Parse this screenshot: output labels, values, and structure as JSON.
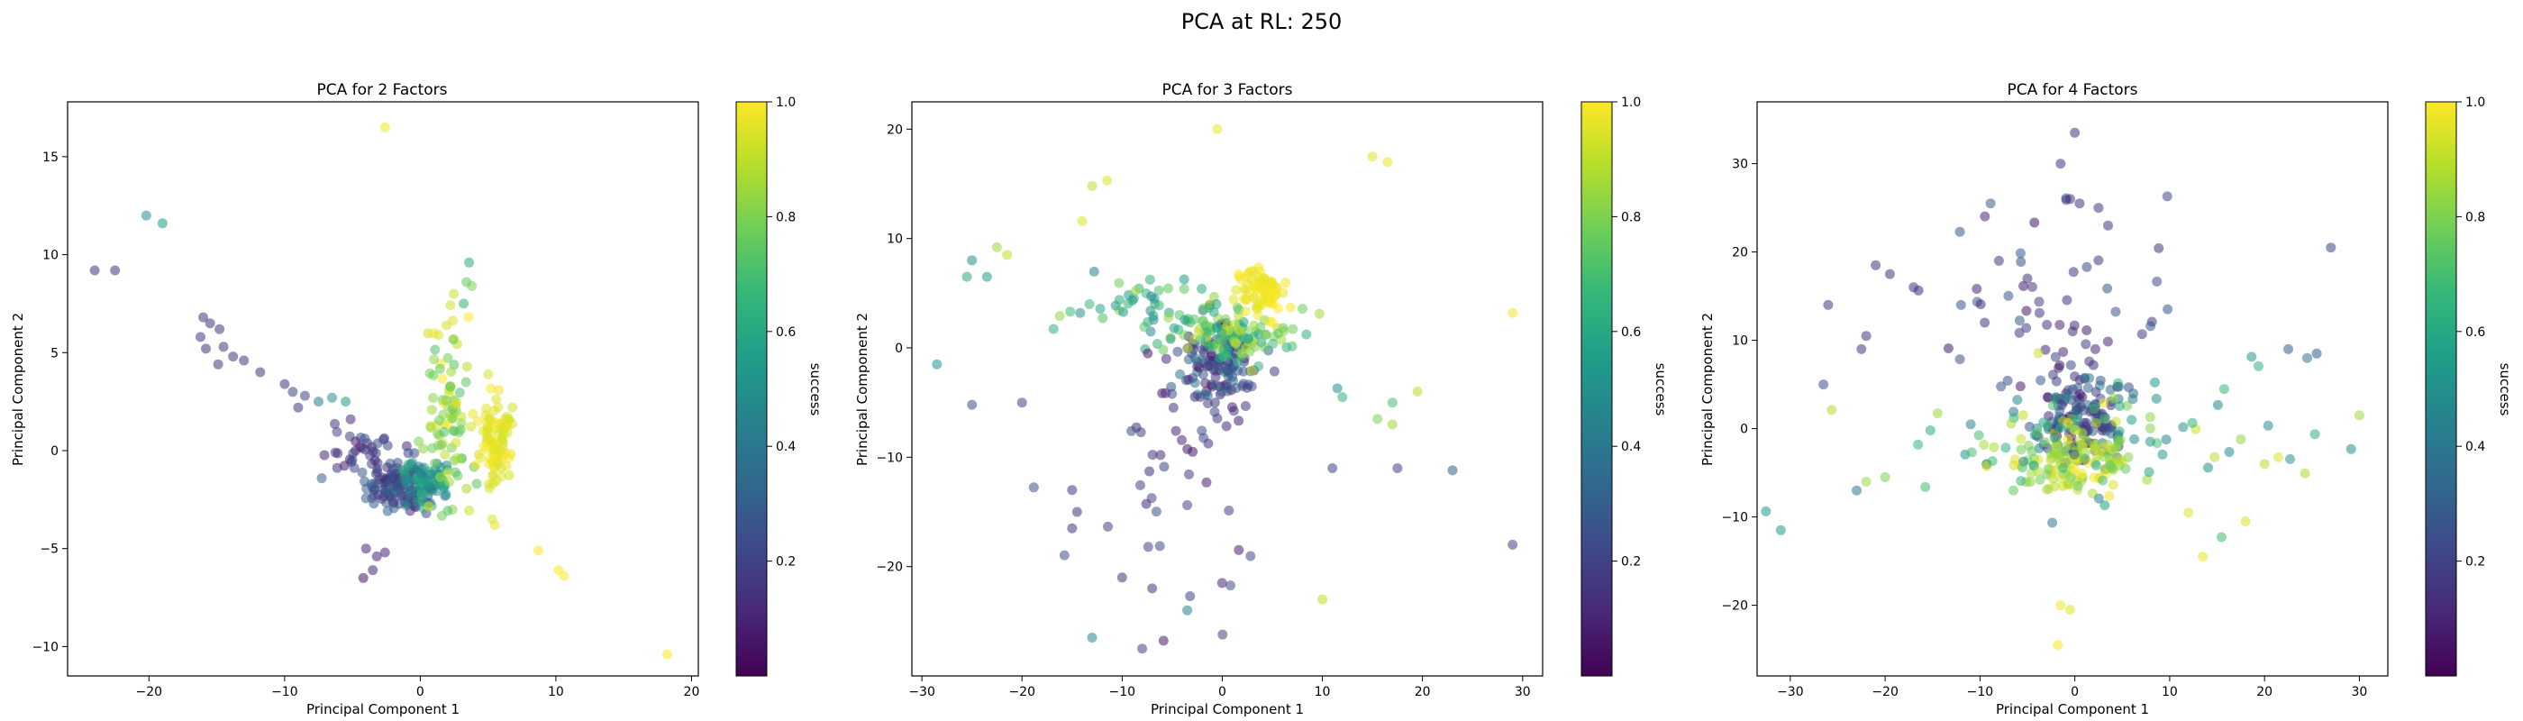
{
  "figure": {
    "suptitle": "PCA at RL: 250"
  },
  "colormap": [
    "#440154",
    "#482878",
    "#3e4989",
    "#31688e",
    "#26828e",
    "#1f9e89",
    "#35b779",
    "#6ece58",
    "#b5de2b",
    "#fde725"
  ],
  "chart_data": [
    {
      "type": "scatter",
      "title": "PCA for 2 Factors",
      "xlabel": "Principal Component 1",
      "ylabel": "Principal Component 2",
      "xlim": [
        -26,
        20.5
      ],
      "ylim": [
        -11.5,
        17.8
      ],
      "xticks": [
        -20,
        -10,
        0,
        10,
        20
      ],
      "yticks": [
        -10,
        -5,
        0,
        5,
        10,
        15
      ],
      "colorbar": {
        "label": "success",
        "range": [
          0,
          1
        ],
        "ticks": [
          0.2,
          0.4,
          0.6,
          0.8,
          1.0
        ]
      },
      "clusters": [
        {
          "cx": -1.5,
          "cy": -1.8,
          "sx": 1.2,
          "sy": 0.7,
          "n": 110,
          "c": [
            0.1,
            0.35
          ]
        },
        {
          "cx": 0.5,
          "cy": -1.4,
          "sx": 1.0,
          "sy": 0.6,
          "n": 70,
          "c": [
            0.4,
            0.65
          ]
        },
        {
          "cx": 2.2,
          "cy": 2.0,
          "sx": 0.8,
          "sy": 2.3,
          "n": 90,
          "c": [
            0.7,
            1.0
          ]
        },
        {
          "cx": 5.6,
          "cy": 0.4,
          "sx": 0.6,
          "sy": 1.0,
          "n": 90,
          "c": [
            0.93,
            1.0
          ]
        },
        {
          "cx": -4.5,
          "cy": -0.3,
          "sx": 1.6,
          "sy": 0.9,
          "n": 40,
          "c": [
            0.05,
            0.3
          ]
        }
      ],
      "points": [
        [
          -16,
          6.8,
          0.15
        ],
        [
          -15.5,
          6.5,
          0.15
        ],
        [
          -14.8,
          6.2,
          0.15
        ],
        [
          -16.2,
          5.8,
          0.15
        ],
        [
          -15.8,
          5.2,
          0.15
        ],
        [
          -14.5,
          5.3,
          0.15
        ],
        [
          -13.8,
          4.8,
          0.15
        ],
        [
          -14.9,
          4.4,
          0.15
        ],
        [
          -13,
          4.6,
          0.15
        ],
        [
          -11.8,
          4.0,
          0.15
        ],
        [
          -10,
          3.4,
          0.15
        ],
        [
          -9.4,
          3.0,
          0.2
        ],
        [
          -8.5,
          2.8,
          0.2
        ],
        [
          -7.5,
          2.5,
          0.4
        ],
        [
          -6.5,
          2.7,
          0.5
        ],
        [
          -5.5,
          2.5,
          0.55
        ],
        [
          -9,
          2.2,
          0.15
        ],
        [
          -24,
          9.2,
          0.15
        ],
        [
          -22.5,
          9.2,
          0.15
        ],
        [
          -20.2,
          12,
          0.5
        ],
        [
          -19,
          11.6,
          0.55
        ],
        [
          -2.6,
          16.5,
          0.97
        ],
        [
          -4,
          -5,
          0.1
        ],
        [
          -3.2,
          -5.4,
          0.1
        ],
        [
          -2.6,
          -5.2,
          0.1
        ],
        [
          -3.5,
          -6.1,
          0.1
        ],
        [
          -4.2,
          -6.5,
          0.05
        ],
        [
          3.2,
          7.5,
          0.65
        ],
        [
          3.6,
          9.6,
          0.6
        ],
        [
          3.4,
          8.6,
          0.75
        ],
        [
          3.8,
          8.4,
          0.8
        ],
        [
          5.3,
          -3.5,
          0.95
        ],
        [
          5.5,
          -3.8,
          0.97
        ],
        [
          8.7,
          -5.1,
          1.0
        ],
        [
          10.2,
          -6.1,
          1.0
        ],
        [
          10.6,
          -6.4,
          1.0
        ],
        [
          18.2,
          -10.4,
          1.0
        ]
      ]
    },
    {
      "type": "scatter",
      "title": "PCA for 3 Factors",
      "xlabel": "Principal Component 1",
      "ylabel": "Principal Component 2",
      "xlim": [
        -31,
        32
      ],
      "ylim": [
        -30,
        22.5
      ],
      "xticks": [
        -30,
        -20,
        -10,
        0,
        10,
        20,
        30
      ],
      "yticks": [
        -20,
        -10,
        0,
        10,
        20
      ],
      "colorbar": {
        "label": "success",
        "range": [
          0,
          1
        ],
        "ticks": [
          0.2,
          0.4,
          0.6,
          0.8,
          1.0
        ]
      },
      "clusters": [
        {
          "cx": -0.5,
          "cy": -1.5,
          "sx": 1.8,
          "sy": 1.8,
          "n": 120,
          "c": [
            0.05,
            0.4
          ]
        },
        {
          "cx": 1.0,
          "cy": 1.2,
          "sx": 2.8,
          "sy": 1.2,
          "n": 110,
          "c": [
            0.55,
            0.95
          ]
        },
        {
          "cx": 3.8,
          "cy": 5.2,
          "sx": 1.3,
          "sy": 1.1,
          "n": 80,
          "c": [
            0.95,
            1.0
          ]
        },
        {
          "cx": -8.0,
          "cy": 4.0,
          "sx": 4.0,
          "sy": 1.8,
          "n": 45,
          "c": [
            0.45,
            0.85
          ]
        },
        {
          "cx": -5.0,
          "cy": -11.0,
          "sx": 5.0,
          "sy": 6.0,
          "n": 45,
          "c": [
            0.05,
            0.25
          ]
        }
      ],
      "points": [
        [
          -28.5,
          -1.5,
          0.5
        ],
        [
          -25.5,
          6.5,
          0.6
        ],
        [
          -25,
          8,
          0.5
        ],
        [
          -23.5,
          6.5,
          0.55
        ],
        [
          -22.5,
          9.2,
          0.85
        ],
        [
          -21.5,
          8.5,
          0.9
        ],
        [
          -25,
          -5.2,
          0.25
        ],
        [
          -20,
          -5,
          0.2
        ],
        [
          -14,
          11.6,
          0.95
        ],
        [
          -13,
          14.8,
          0.9
        ],
        [
          -11.5,
          15.3,
          0.95
        ],
        [
          -0.5,
          20,
          0.97
        ],
        [
          15,
          17.5,
          0.95
        ],
        [
          16.5,
          17,
          0.97
        ],
        [
          29,
          3.2,
          0.97
        ],
        [
          -13,
          -26.5,
          0.45
        ],
        [
          -8,
          -27.5,
          0.2
        ],
        [
          -3.5,
          -24,
          0.45
        ],
        [
          10,
          -23,
          0.9
        ],
        [
          29,
          -18,
          0.2
        ],
        [
          23,
          -11.2,
          0.3
        ],
        [
          17.5,
          -11,
          0.2
        ],
        [
          11,
          -11,
          0.2
        ],
        [
          15.5,
          -6.5,
          0.8
        ],
        [
          17,
          -7,
          0.85
        ],
        [
          19.5,
          -4,
          0.9
        ],
        [
          17,
          -5,
          0.7
        ],
        [
          12,
          -4.5,
          0.65
        ],
        [
          11.5,
          -3.7,
          0.5
        ],
        [
          -10,
          -21,
          0.15
        ],
        [
          -7,
          -22,
          0.15
        ],
        [
          -15,
          -13,
          0.15
        ],
        [
          -14.5,
          -15,
          0.15
        ],
        [
          -15,
          -16.5,
          0.15
        ]
      ]
    },
    {
      "type": "scatter",
      "title": "PCA for 4 Factors",
      "xlabel": "Principal Component 1",
      "ylabel": "Principal Component 2",
      "xlim": [
        -33.5,
        33
      ],
      "ylim": [
        -28,
        37
      ],
      "xticks": [
        -30,
        -20,
        -10,
        0,
        10,
        20,
        30
      ],
      "yticks": [
        -20,
        -10,
        0,
        10,
        20,
        30
      ],
      "colorbar": {
        "label": "success",
        "range": [
          0,
          1
        ],
        "ticks": [
          0.2,
          0.4,
          0.6,
          0.8,
          1.0
        ]
      },
      "clusters": [
        {
          "cx": 0.5,
          "cy": 1.5,
          "sx": 2.5,
          "sy": 2.5,
          "n": 140,
          "c": [
            0.05,
            0.45
          ]
        },
        {
          "cx": 0.5,
          "cy": -3.5,
          "sx": 3.0,
          "sy": 2.0,
          "n": 120,
          "c": [
            0.75,
            1.0
          ]
        },
        {
          "cx": -2.0,
          "cy": 12.0,
          "sx": 6.5,
          "sy": 6.0,
          "n": 60,
          "c": [
            0.05,
            0.3
          ]
        },
        {
          "cx": 0.0,
          "cy": -2.0,
          "sx": 11.0,
          "sy": 4.0,
          "n": 90,
          "c": [
            0.4,
            0.95
          ]
        }
      ],
      "points": [
        [
          0,
          33.5,
          0.15
        ],
        [
          -1.5,
          30,
          0.15
        ],
        [
          -0.5,
          26,
          0.15
        ],
        [
          0.5,
          25.5,
          0.15
        ],
        [
          2.5,
          25,
          0.15
        ],
        [
          3.5,
          23,
          0.15
        ],
        [
          -26,
          14,
          0.15
        ],
        [
          -21,
          18.5,
          0.15
        ],
        [
          -19.5,
          17.5,
          0.15
        ],
        [
          -17,
          16,
          0.15
        ],
        [
          -22,
          10.5,
          0.15
        ],
        [
          -22.5,
          9,
          0.15
        ],
        [
          -26.5,
          5,
          0.25
        ],
        [
          27,
          20.5,
          0.2
        ],
        [
          25.5,
          8.5,
          0.3
        ],
        [
          24.5,
          8,
          0.4
        ],
        [
          30,
          1.5,
          0.85
        ],
        [
          22.5,
          9,
          0.3
        ],
        [
          -31,
          -11.5,
          0.55
        ],
        [
          -23,
          -7,
          0.4
        ],
        [
          -22,
          -6,
          0.85
        ],
        [
          -20,
          -5.5,
          0.8
        ],
        [
          -1.5,
          -20,
          0.97
        ],
        [
          -1.8,
          -24.5,
          1.0
        ],
        [
          -0.5,
          -20.5,
          0.95
        ],
        [
          13.5,
          -14.5,
          0.97
        ],
        [
          12,
          -9.5,
          0.95
        ],
        [
          18,
          -10.5,
          0.95
        ],
        [
          20,
          -4,
          0.9
        ],
        [
          -8,
          19,
          0.15
        ],
        [
          -5,
          17,
          0.15
        ],
        [
          -9.5,
          12,
          0.15
        ],
        [
          -12,
          14,
          0.25
        ]
      ]
    }
  ]
}
